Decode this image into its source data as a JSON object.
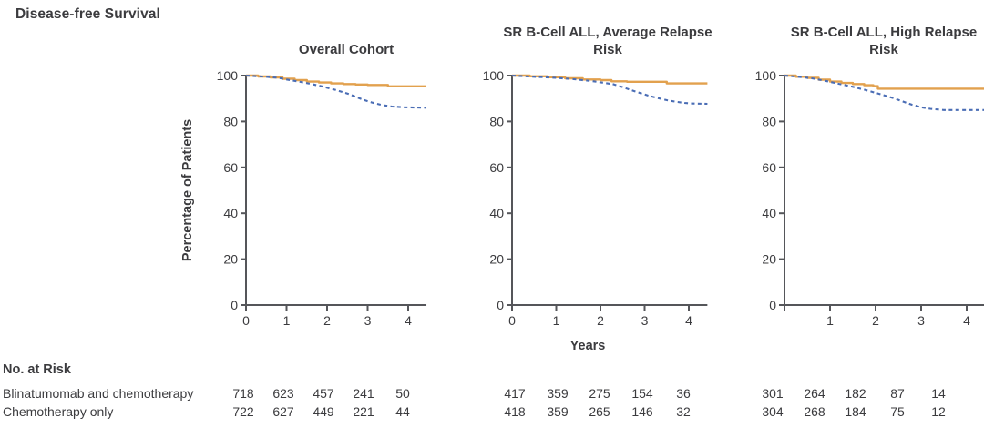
{
  "figure": {
    "title": "Disease-free Survival",
    "ylabel": "Percentage of Patients",
    "xlabel": "Years",
    "colors": {
      "blinatumomab_line": "#e2a14e",
      "chemotherapy_line": "#4a6db5",
      "axis": "#55565a",
      "text": "#3b3b3e"
    }
  },
  "chart_data": [
    {
      "type": "line",
      "title": "Overall Cohort",
      "xlabel": "Years",
      "ylabel": "Percentage of Patients",
      "xlim": [
        0,
        4.45
      ],
      "ylim": [
        0,
        100
      ],
      "x_ticks": [
        0,
        1,
        2,
        3,
        4
      ],
      "x_tick_labels": [
        "0",
        "1",
        "2",
        "3",
        "4"
      ],
      "y_ticks": [
        0,
        20,
        40,
        60,
        80,
        100
      ],
      "grid": false,
      "legend": "none",
      "series": [
        {
          "name": "Blinatumomab and chemotherapy",
          "color": "#e2a14e",
          "style": "solid",
          "interp": "step",
          "points": [
            [
              0,
              100
            ],
            [
              0.3,
              99.6
            ],
            [
              0.6,
              99.2
            ],
            [
              0.9,
              98.6
            ],
            [
              1.2,
              98.0
            ],
            [
              1.5,
              97.4
            ],
            [
              1.8,
              97.0
            ],
            [
              2.1,
              96.6
            ],
            [
              2.4,
              96.3
            ],
            [
              2.7,
              96.1
            ],
            [
              3.0,
              95.9
            ],
            [
              3.5,
              95.3
            ],
            [
              4.45,
              95.3
            ]
          ]
        },
        {
          "name": "Chemotherapy only",
          "color": "#4a6db5",
          "style": "dashed",
          "interp": "linear",
          "points": [
            [
              0,
              100
            ],
            [
              0.4,
              99.6
            ],
            [
              0.8,
              99.0
            ],
            [
              1.0,
              98.3
            ],
            [
              1.3,
              97.4
            ],
            [
              1.6,
              96.4
            ],
            [
              1.9,
              95.2
            ],
            [
              2.2,
              93.8
            ],
            [
              2.5,
              92.2
            ],
            [
              2.7,
              90.8
            ],
            [
              2.9,
              89.4
            ],
            [
              3.1,
              88.3
            ],
            [
              3.35,
              87.2
            ],
            [
              3.6,
              86.5
            ],
            [
              3.9,
              86.2
            ],
            [
              4.45,
              86.0
            ]
          ]
        }
      ]
    },
    {
      "type": "line",
      "title": "SR B-Cell ALL, Average Relapse\nRisk",
      "xlabel": "Years",
      "ylabel": "Percentage of Patients",
      "xlim": [
        0,
        4.42
      ],
      "ylim": [
        0,
        100
      ],
      "x_ticks": [
        0,
        1,
        2,
        3,
        4
      ],
      "x_tick_labels": [
        "0",
        "1",
        "2",
        "3",
        "4"
      ],
      "y_ticks": [
        0,
        20,
        40,
        60,
        80,
        100
      ],
      "grid": false,
      "legend": "none",
      "series": [
        {
          "name": "Blinatumomab and chemotherapy",
          "color": "#e2a14e",
          "style": "solid",
          "interp": "step",
          "points": [
            [
              0,
              100
            ],
            [
              0.4,
              99.7
            ],
            [
              0.8,
              99.3
            ],
            [
              1.2,
              98.8
            ],
            [
              1.6,
              98.3
            ],
            [
              2.0,
              98.0
            ],
            [
              2.25,
              97.5
            ],
            [
              2.6,
              97.3
            ],
            [
              3.5,
              96.6
            ],
            [
              4.42,
              96.6
            ]
          ]
        },
        {
          "name": "Chemotherapy only",
          "color": "#4a6db5",
          "style": "dashed",
          "interp": "linear",
          "points": [
            [
              0,
              100
            ],
            [
              0.5,
              99.5
            ],
            [
              1.0,
              99.0
            ],
            [
              1.4,
              98.4
            ],
            [
              1.8,
              97.6
            ],
            [
              2.1,
              96.8
            ],
            [
              2.3,
              96.2
            ],
            [
              2.5,
              95.0
            ],
            [
              2.7,
              93.6
            ],
            [
              2.9,
              92.4
            ],
            [
              3.1,
              91.2
            ],
            [
              3.3,
              90.2
            ],
            [
              3.5,
              89.3
            ],
            [
              3.7,
              88.6
            ],
            [
              3.9,
              88.1
            ],
            [
              4.1,
              87.8
            ],
            [
              4.42,
              87.7
            ]
          ]
        }
      ]
    },
    {
      "type": "line",
      "title": "SR B-Cell ALL, High Relapse\nRisk",
      "xlabel": "Years",
      "ylabel": "Percentage of Patients",
      "xlim": [
        0,
        4.38
      ],
      "ylim": [
        0,
        100
      ],
      "x_ticks": [
        0,
        1,
        2,
        3,
        4
      ],
      "x_tick_labels": [
        "",
        "1",
        "2",
        "3",
        "4"
      ],
      "y_ticks": [
        0,
        20,
        40,
        60,
        80,
        100
      ],
      "grid": false,
      "legend": "none",
      "series": [
        {
          "name": "Blinatumomab and chemotherapy",
          "color": "#e2a14e",
          "style": "solid",
          "interp": "step",
          "points": [
            [
              0,
              100
            ],
            [
              0.25,
              99.5
            ],
            [
              0.5,
              99.0
            ],
            [
              0.75,
              98.2
            ],
            [
              1.0,
              97.4
            ],
            [
              1.25,
              96.8
            ],
            [
              1.5,
              96.3
            ],
            [
              1.75,
              95.8
            ],
            [
              1.95,
              95.4
            ],
            [
              2.05,
              94.3
            ],
            [
              4.38,
              94.3
            ]
          ]
        },
        {
          "name": "Chemotherapy only",
          "color": "#4a6db5",
          "style": "dashed",
          "interp": "linear",
          "points": [
            [
              0,
              100
            ],
            [
              0.3,
              99.5
            ],
            [
              0.6,
              98.8
            ],
            [
              0.9,
              97.7
            ],
            [
              1.2,
              96.4
            ],
            [
              1.5,
              95.1
            ],
            [
              1.8,
              93.6
            ],
            [
              2.1,
              91.9
            ],
            [
              2.4,
              90.1
            ],
            [
              2.6,
              88.7
            ],
            [
              2.8,
              87.3
            ],
            [
              3.0,
              86.2
            ],
            [
              3.2,
              85.5
            ],
            [
              3.5,
              85.0
            ],
            [
              4.38,
              85.0
            ]
          ]
        }
      ]
    }
  ],
  "risk_table": {
    "heading": "No. at Risk",
    "rows": [
      {
        "label": "Blinatumomab and chemotherapy",
        "values": [
          [
            "718",
            "623",
            "457",
            "241",
            "50"
          ],
          [
            "417",
            "359",
            "275",
            "154",
            "36"
          ],
          [
            "301",
            "264",
            "182",
            "87",
            "14"
          ]
        ]
      },
      {
        "label": "Chemotherapy only",
        "values": [
          [
            "722",
            "627",
            "449",
            "221",
            "44"
          ],
          [
            "418",
            "359",
            "265",
            "146",
            "32"
          ],
          [
            "304",
            "268",
            "184",
            "75",
            "12"
          ]
        ]
      }
    ]
  }
}
